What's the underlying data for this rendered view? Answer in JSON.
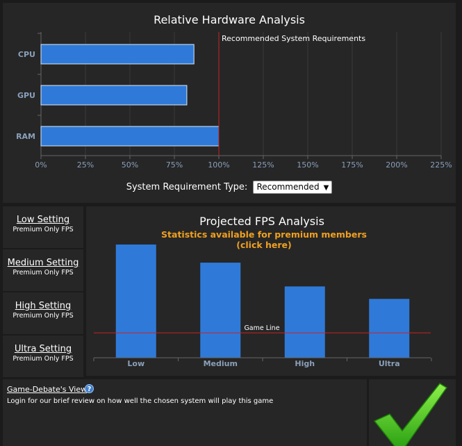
{
  "hardware": {
    "chart_data": {
      "type": "bar",
      "orientation": "horizontal",
      "title": "Relative Hardware Analysis",
      "categories": [
        "CPU",
        "GPU",
        "RAM"
      ],
      "values": [
        86,
        82,
        100
      ],
      "xlim": [
        0,
        225
      ],
      "x_ticks": [
        "0%",
        "25%",
        "50%",
        "75%",
        "100%",
        "125%",
        "150%",
        "175%",
        "200%",
        "225%"
      ],
      "x_tick_values": [
        0,
        25,
        50,
        75,
        100,
        125,
        150,
        175,
        200,
        225
      ],
      "reference_line": {
        "label": "Recommended System Requirements",
        "value": 100,
        "color": "#cc2222"
      },
      "bar_color": "#2f7ad8",
      "grid": true
    },
    "requirement_type_label": "System Requirement Type:",
    "requirement_type_value": "Recommended"
  },
  "settings": [
    {
      "name": "Low Setting",
      "sub": "Premium Only FPS"
    },
    {
      "name": "Medium Setting",
      "sub": "Premium Only FPS"
    },
    {
      "name": "High Setting",
      "sub": "Premium Only FPS"
    },
    {
      "name": "Ultra Setting",
      "sub": "Premium Only FPS"
    }
  ],
  "fps": {
    "chart_data": {
      "type": "bar",
      "title": "Projected FPS Analysis",
      "subtitle_line1": "Statistics available for premium members",
      "subtitle_line2": "(click here)",
      "categories": [
        "Low",
        "Medium",
        "High",
        "Ultra"
      ],
      "values": [
        100,
        84,
        63,
        52
      ],
      "ylim": [
        0,
        100
      ],
      "game_line": {
        "label": "Game Line",
        "value": 22,
        "color": "#cc2222"
      },
      "bar_color": "#2f7ad8",
      "subtitle_color": "#f0a020"
    }
  },
  "review": {
    "title": "Game-Debate's View",
    "help_icon": "help-icon",
    "text": "Login for our brief review on how well the chosen system will play this game",
    "icon": "green-checkmark-icon"
  }
}
